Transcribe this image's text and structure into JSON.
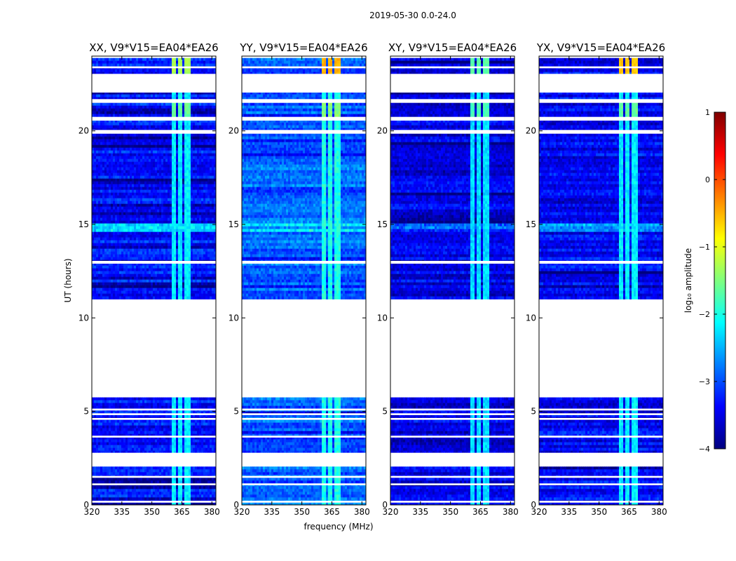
{
  "figure_title": "2019-05-30 0.0-24.0",
  "chart_data": {
    "type": "heatmap",
    "suptitle": "2019-05-30 0.0-24.0",
    "shared_ylabel": "UT (hours)",
    "shared_xlabel": "frequency (MHz)",
    "xlim": [
      320,
      382
    ],
    "ylim": [
      0,
      24
    ],
    "xticks": [
      320,
      335,
      350,
      365,
      380
    ],
    "yticks": [
      0,
      5,
      10,
      15,
      20
    ],
    "colorbar": {
      "label": "log₁₀ amplitude",
      "range": [
        -4,
        1
      ],
      "ticks": [
        1,
        0,
        -1,
        -2,
        -3,
        -4
      ],
      "colormap": "jet",
      "colormap_stops": [
        "#00007f",
        "#0000ff",
        "#007fff",
        "#00ffff",
        "#7fff7f",
        "#ffff00",
        "#ff7f00",
        "#ff0000",
        "#7f0000"
      ]
    },
    "data_time_ranges_hours": [
      [
        0.0,
        2.05
      ],
      [
        2.8,
        5.75
      ],
      [
        11.0,
        23.9
      ]
    ],
    "flagged_time_gaps_hours": [
      [
        0.12,
        0.22
      ],
      [
        1.05,
        1.15
      ],
      [
        1.45,
        1.55
      ],
      [
        3.6,
        3.7
      ],
      [
        4.55,
        4.65
      ],
      [
        4.8,
        4.9
      ],
      [
        5.05,
        5.15
      ],
      [
        12.9,
        13.05
      ],
      [
        19.85,
        20.05
      ],
      [
        20.55,
        20.75
      ],
      [
        21.5,
        21.7
      ],
      [
        22.05,
        23.05
      ],
      [
        23.35,
        23.45
      ]
    ],
    "rfi_channels_mhz": [
      [
        359.5,
        362.0
      ],
      [
        362.8,
        365.5
      ],
      [
        366.5,
        369.0
      ]
    ],
    "panels": [
      {
        "title": "XX, V9*V15=EA04*EA26",
        "polarization": "XX",
        "baseline": "V9*V15=EA04*EA26",
        "background_level": -3.3,
        "rfi_level": -2.2,
        "peak_level": -1.3
      },
      {
        "title": "YY, V9*V15=EA04*EA26",
        "polarization": "YY",
        "baseline": "V9*V15=EA04*EA26",
        "background_level": -2.9,
        "rfi_level": -2.0,
        "peak_level": -0.5
      },
      {
        "title": "XY, V9*V15=EA04*EA26",
        "polarization": "XY",
        "baseline": "V9*V15=EA04*EA26",
        "background_level": -3.5,
        "rfi_level": -2.3,
        "peak_level": -1.7
      },
      {
        "title": "YX, V9*V15=EA04*EA26",
        "polarization": "YX",
        "baseline": "V9*V15=EA04*EA26",
        "background_level": -3.4,
        "rfi_level": -2.2,
        "peak_level": -0.6
      }
    ]
  }
}
